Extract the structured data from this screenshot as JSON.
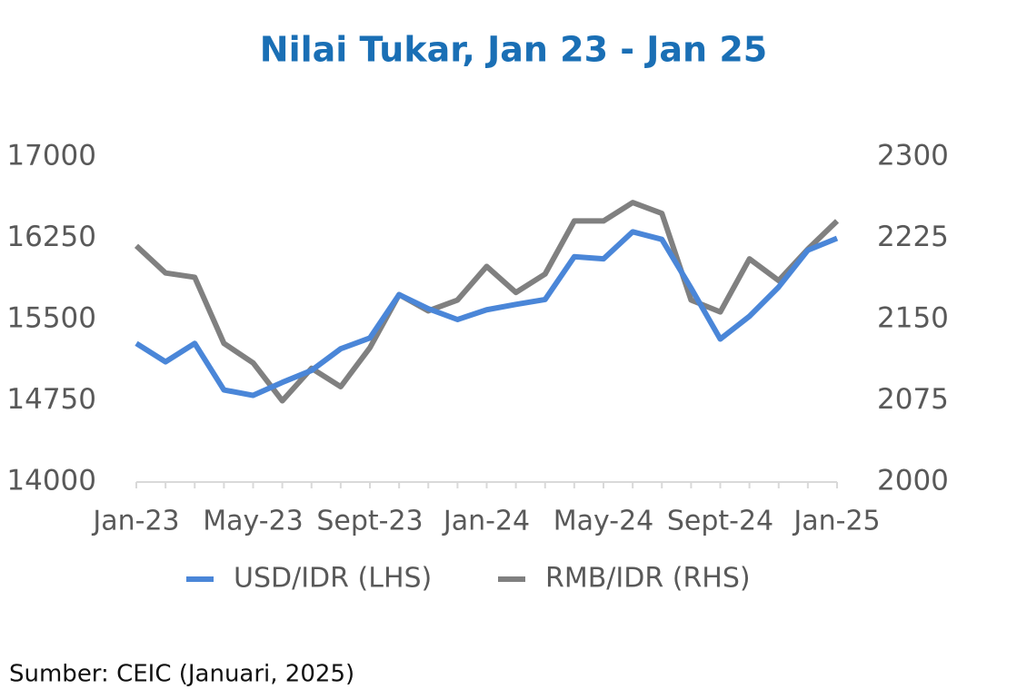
{
  "chart_data": {
    "type": "line",
    "title": "Nilai Tukar, Jan 23 - Jan 25",
    "categories": [
      "Jan-23",
      null,
      null,
      null,
      "May-23",
      null,
      null,
      null,
      "Sept-23",
      null,
      null,
      null,
      "Jan-24",
      null,
      null,
      null,
      "May-24",
      null,
      null,
      null,
      "Sept-24",
      null,
      null,
      null,
      "Jan-25"
    ],
    "series": [
      {
        "name": "USD/IDR (LHS)",
        "color": "#4a86d8",
        "axis": "y",
        "values": [
          15280,
          15110,
          15280,
          14850,
          14800,
          14920,
          15030,
          15230,
          15330,
          15730,
          15600,
          15500,
          15590,
          15640,
          15685,
          16080,
          16060,
          16310,
          16240,
          15790,
          15320,
          15530,
          15800,
          16140,
          16250
        ]
      },
      {
        "name": "RMB/IDR (RHS)",
        "color": "#808080",
        "axis": "y2",
        "values": [
          2218,
          2193,
          2189,
          2128,
          2110,
          2075,
          2105,
          2088,
          2124,
          2173,
          2158,
          2168,
          2199,
          2175,
          2192,
          2241,
          2241,
          2258,
          2248,
          2168,
          2157,
          2206,
          2186,
          2215,
          2241
        ]
      }
    ],
    "ylim": [
      14000,
      17000
    ],
    "yticks": [
      14000,
      14750,
      15500,
      16250,
      17000
    ],
    "y2lim": [
      2000,
      2300
    ],
    "y2ticks": [
      2000,
      2075,
      2150,
      2225,
      2300
    ],
    "grid": false,
    "legend": "bottom",
    "source": "Sumber: CEIC (Januari, 2025)"
  }
}
